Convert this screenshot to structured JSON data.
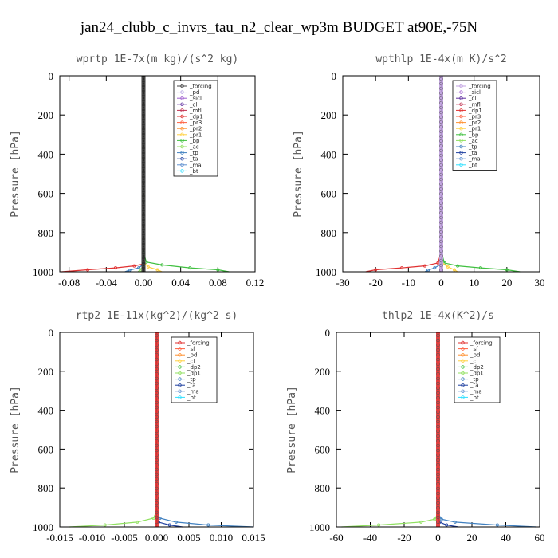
{
  "figure_title": "jan24_clubb_c_invrs_tau_n2_clear_wp3m  BUDGET at90E,-75N",
  "chart_data": [
    {
      "type": "line",
      "title": "wprtp  1E-7x(m kg)/(s^2 kg)",
      "ylabel": "Pressure [hPa]",
      "xlim": [
        -0.09,
        0.12
      ],
      "ylim": [
        0,
        1000
      ],
      "y_inverted": true,
      "xticks": [
        "-0.08",
        "-0.04",
        "0.00",
        "0.04",
        "0.08",
        "0.12"
      ],
      "xtick_values": [
        -0.08,
        -0.04,
        0.0,
        0.04,
        0.08,
        0.12
      ],
      "yticks": [
        "0",
        "200",
        "400",
        "600",
        "800",
        "1000"
      ],
      "ytick_values": [
        0,
        200,
        400,
        600,
        800,
        1000
      ],
      "legend": [
        "_forcing",
        "_pd",
        "_sicl",
        "_cl",
        "_mfl",
        "_dp1",
        "_pr3",
        "_pr2",
        "_pr1",
        "_bp",
        "_ac",
        "_tp",
        "_ta",
        "_ma",
        "_bt"
      ],
      "legend_colors": [
        "#444444",
        "#b0a0e0",
        "#a060d0",
        "#6030a0",
        "#c03050",
        "#e03030",
        "#ff6040",
        "#ff9030",
        "#ffd040",
        "#40c040",
        "#90e060",
        "#4080c0",
        "#2040a0",
        "#6090d0",
        "#30e0ff"
      ],
      "series": [
        {
          "name": "_dp1",
          "color": "#e03030",
          "x": [
            0,
            0,
            0,
            -0.01,
            -0.03,
            -0.06,
            -0.088
          ],
          "y": [
            0,
            900,
            960,
            970,
            980,
            990,
            1000
          ]
        },
        {
          "name": "_bp",
          "color": "#40c040",
          "x": [
            0,
            0,
            0.003,
            0.02,
            0.05,
            0.08,
            0.092
          ],
          "y": [
            0,
            900,
            950,
            965,
            980,
            990,
            1000
          ]
        },
        {
          "name": "_pr1",
          "color": "#ffd040",
          "x": [
            0,
            0,
            0.005,
            0.015,
            0.02
          ],
          "y": [
            0,
            950,
            975,
            990,
            1000
          ]
        },
        {
          "name": "_tp",
          "color": "#4080c0",
          "x": [
            0,
            0,
            -0.005,
            -0.015,
            -0.02
          ],
          "y": [
            0,
            960,
            980,
            992,
            1000
          ]
        },
        {
          "name": "_ac",
          "color": "#90e060",
          "x": [
            0,
            0,
            -0.003,
            -0.006
          ],
          "y": [
            0,
            970,
            990,
            1000
          ]
        },
        {
          "name": "_forcing",
          "color": "#222222",
          "x": [
            0,
            0
          ],
          "y": [
            0,
            1000
          ]
        }
      ]
    },
    {
      "type": "line",
      "title": "wpthlp  1E-4x(m K)/s^2",
      "ylabel": "Pressure [hPa]",
      "xlim": [
        -30,
        30
      ],
      "ylim": [
        0,
        1000
      ],
      "y_inverted": true,
      "xticks": [
        "-30",
        "-20",
        "-10",
        "0",
        "10",
        "20",
        "30"
      ],
      "xtick_values": [
        -30,
        -20,
        -10,
        0,
        10,
        20,
        30
      ],
      "yticks": [
        "0",
        "200",
        "400",
        "600",
        "800",
        "1000"
      ],
      "ytick_values": [
        0,
        200,
        400,
        600,
        800,
        1000
      ],
      "legend": [
        "_forcing",
        "_sicl",
        "_cl",
        "_mfl",
        "_dp1",
        "_pr3",
        "_pr2",
        "_pr1",
        "_bp",
        "_ac",
        "_tp",
        "_ta",
        "_ma",
        "_bt"
      ],
      "legend_colors": [
        "#c0a0e0",
        "#a060d0",
        "#6030a0",
        "#c03050",
        "#e03030",
        "#ff6040",
        "#ff9030",
        "#ffd040",
        "#40c040",
        "#90e060",
        "#4080c0",
        "#2040a0",
        "#6090d0",
        "#30e0ff"
      ],
      "series": [
        {
          "name": "_dp1",
          "color": "#e03030",
          "x": [
            0,
            0,
            -1,
            -5,
            -12,
            -20,
            -23
          ],
          "y": [
            0,
            900,
            955,
            970,
            980,
            990,
            1000
          ]
        },
        {
          "name": "_bp",
          "color": "#40c040",
          "x": [
            0,
            0,
            1,
            5,
            12,
            20,
            24
          ],
          "y": [
            0,
            900,
            955,
            970,
            980,
            990,
            1000
          ]
        },
        {
          "name": "_pr1",
          "color": "#ffd040",
          "x": [
            0,
            0,
            2,
            4,
            5
          ],
          "y": [
            0,
            950,
            975,
            990,
            1000
          ]
        },
        {
          "name": "_tp",
          "color": "#4080c0",
          "x": [
            0,
            0,
            -2,
            -4,
            -5
          ],
          "y": [
            0,
            960,
            980,
            992,
            1000
          ]
        },
        {
          "name": "_forcing",
          "color": "#c0a0e0",
          "x": [
            0,
            0
          ],
          "y": [
            0,
            1000
          ]
        }
      ]
    },
    {
      "type": "line",
      "title": "rtp2  1E-11x(kg^2)/(kg^2 s)",
      "ylabel": "Pressure [hPa]",
      "xlim": [
        -0.015,
        0.015
      ],
      "ylim": [
        0,
        1000
      ],
      "y_inverted": true,
      "xticks": [
        "-0.015",
        "-0.010",
        "-0.005",
        "0.000",
        "0.005",
        "0.010",
        "0.015"
      ],
      "xtick_values": [
        -0.015,
        -0.01,
        -0.005,
        0.0,
        0.005,
        0.01,
        0.015
      ],
      "yticks": [
        "0",
        "200",
        "400",
        "600",
        "800",
        "1000"
      ],
      "ytick_values": [
        0,
        200,
        400,
        600,
        800,
        1000
      ],
      "legend": [
        "_forcing",
        "_sf",
        "_pd",
        "_cl",
        "_dp2",
        "_dp1",
        "_tp",
        "_ta",
        "_ma",
        "_bt"
      ],
      "legend_colors": [
        "#e03030",
        "#ff6040",
        "#ff9030",
        "#ffd040",
        "#40c040",
        "#90e060",
        "#4080c0",
        "#2040a0",
        "#6090d0",
        "#30e0ff"
      ],
      "series": [
        {
          "name": "_dp1",
          "color": "#90e060",
          "x": [
            0,
            0,
            -0.0005,
            -0.003,
            -0.008,
            -0.0135
          ],
          "y": [
            0,
            920,
            955,
            975,
            990,
            1000
          ]
        },
        {
          "name": "_tp",
          "color": "#4080c0",
          "x": [
            0,
            0,
            0.0005,
            0.003,
            0.008,
            0.015
          ],
          "y": [
            0,
            920,
            955,
            975,
            990,
            1000
          ]
        },
        {
          "name": "_ta",
          "color": "#2040a0",
          "x": [
            0,
            0,
            0.0003,
            0.002,
            0.004
          ],
          "y": [
            0,
            950,
            975,
            990,
            1000
          ]
        },
        {
          "name": "_forcing",
          "color": "#e03030",
          "x": [
            0,
            0
          ],
          "y": [
            0,
            1000
          ]
        }
      ]
    },
    {
      "type": "line",
      "title": "thlp2  1E-4x(K^2)/s",
      "ylabel": "Pressure [hPa]",
      "xlim": [
        -60,
        60
      ],
      "ylim": [
        0,
        1000
      ],
      "y_inverted": true,
      "xticks": [
        "-60",
        "-40",
        "-20",
        "0",
        "20",
        "40",
        "60"
      ],
      "xtick_values": [
        -60,
        -40,
        -20,
        0,
        20,
        40,
        60
      ],
      "yticks": [
        "0",
        "200",
        "400",
        "600",
        "800",
        "1000"
      ],
      "ytick_values": [
        0,
        200,
        400,
        600,
        800,
        1000
      ],
      "legend": [
        "_forcing",
        "_sf",
        "_pd",
        "_cl",
        "_dp2",
        "_dp1",
        "_tp",
        "_ta",
        "_ma",
        "_bt"
      ],
      "legend_colors": [
        "#e03030",
        "#ff6040",
        "#ff9030",
        "#ffd040",
        "#40c040",
        "#90e060",
        "#4080c0",
        "#2040a0",
        "#6090d0",
        "#30e0ff"
      ],
      "series": [
        {
          "name": "_dp1",
          "color": "#90e060",
          "x": [
            0,
            0,
            -2,
            -10,
            -35,
            -57
          ],
          "y": [
            0,
            930,
            960,
            975,
            990,
            1000
          ]
        },
        {
          "name": "_tp",
          "color": "#4080c0",
          "x": [
            0,
            0,
            2,
            10,
            35,
            58
          ],
          "y": [
            0,
            930,
            960,
            975,
            990,
            1000
          ]
        },
        {
          "name": "_ta",
          "color": "#2040a0",
          "x": [
            0,
            0,
            1,
            5,
            12
          ],
          "y": [
            0,
            950,
            975,
            990,
            1000
          ]
        },
        {
          "name": "_forcing",
          "color": "#e03030",
          "x": [
            0,
            0
          ],
          "y": [
            0,
            1000
          ]
        }
      ]
    }
  ]
}
